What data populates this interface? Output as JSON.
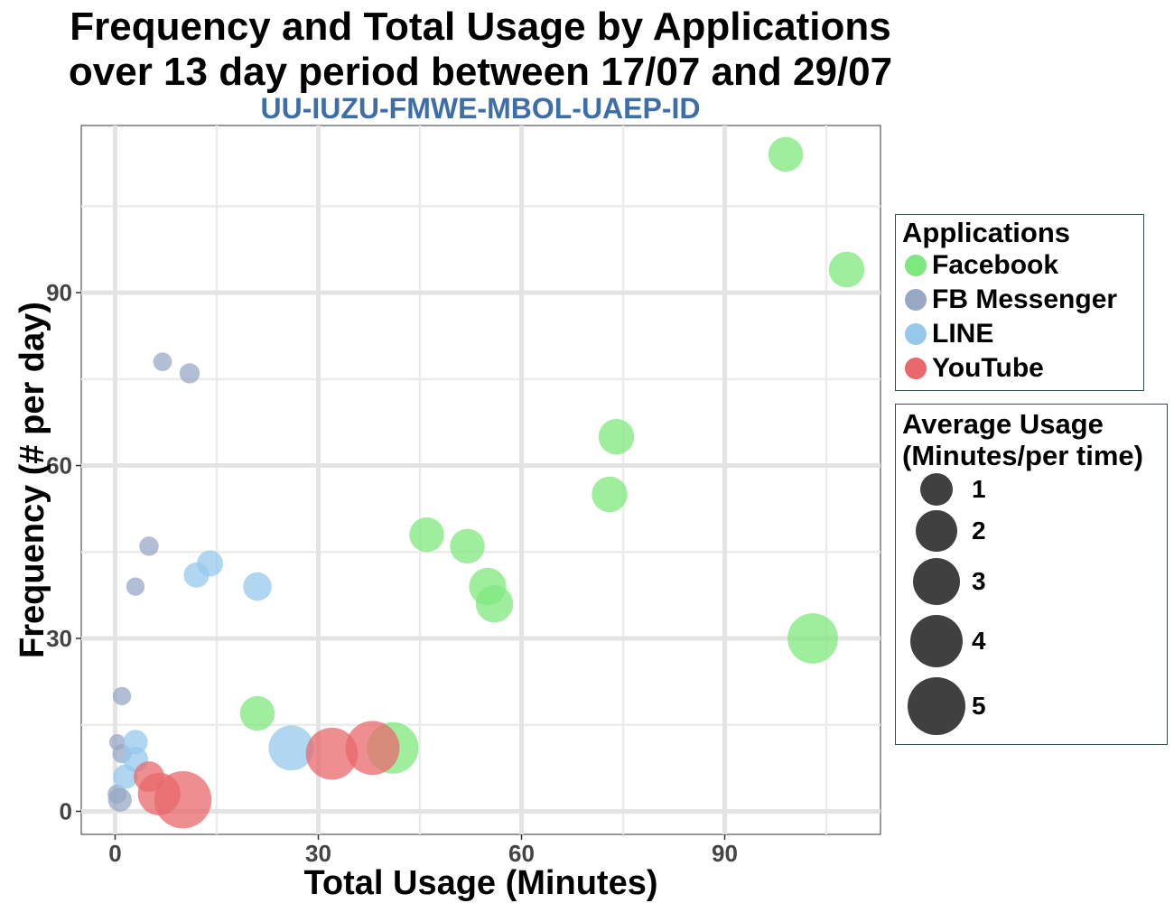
{
  "chart_data": {
    "type": "scatter",
    "title": "Frequency and Total Usage by Applications",
    "title_line2": "over 13 day period between 17/07 and 29/07",
    "subtitle": "UU-IUZU-FMWE-MBOL-UAEP-ID",
    "xlabel": "Total Usage (Minutes)",
    "ylabel": "Frequency (# per day)",
    "xlim": [
      -5,
      113
    ],
    "ylim": [
      -4,
      119
    ],
    "x_ticks": [
      0,
      30,
      60,
      90
    ],
    "y_ticks": [
      0,
      30,
      60,
      90
    ],
    "grid": true,
    "legend_position": "right",
    "color_legend": {
      "title": "Applications",
      "entries": [
        {
          "name": "Facebook",
          "color": "#7de87d"
        },
        {
          "name": "FB Messenger",
          "color": "#97a8c4"
        },
        {
          "name": "LINE",
          "color": "#97c8ec"
        },
        {
          "name": "YouTube",
          "color": "#e8686c"
        }
      ]
    },
    "size_legend": {
      "title_line1": "Average Usage",
      "title_line2": "(Minutes/per time)",
      "values": [
        1,
        2,
        3,
        4,
        5
      ]
    },
    "series": [
      {
        "name": "Facebook",
        "color": "#7de87d",
        "points": [
          {
            "x": 99,
            "y": 114,
            "size": 1.2
          },
          {
            "x": 108,
            "y": 94,
            "size": 1.3
          },
          {
            "x": 74,
            "y": 65,
            "size": 1.3
          },
          {
            "x": 73,
            "y": 55,
            "size": 1.3
          },
          {
            "x": 46,
            "y": 48,
            "size": 1.2
          },
          {
            "x": 52,
            "y": 46,
            "size": 1.2
          },
          {
            "x": 55,
            "y": 39,
            "size": 1.5
          },
          {
            "x": 56,
            "y": 36,
            "size": 1.5
          },
          {
            "x": 103,
            "y": 30,
            "size": 3.5
          },
          {
            "x": 21,
            "y": 17,
            "size": 1.2
          },
          {
            "x": 41,
            "y": 11,
            "size": 3.7
          }
        ]
      },
      {
        "name": "FB Messenger",
        "color": "#97a8c4",
        "points": [
          {
            "x": 7,
            "y": 78,
            "size": 0.09
          },
          {
            "x": 11,
            "y": 76,
            "size": 0.14
          },
          {
            "x": 5,
            "y": 46,
            "size": 0.11
          },
          {
            "x": 3,
            "y": 39,
            "size": 0.08
          },
          {
            "x": 1,
            "y": 20,
            "size": 0.08
          },
          {
            "x": 0.3,
            "y": 12,
            "size": 0.03
          },
          {
            "x": 1,
            "y": 10,
            "size": 0.1
          },
          {
            "x": 0.3,
            "y": 3,
            "size": 0.1
          },
          {
            "x": 0.7,
            "y": 2,
            "size": 0.3
          }
        ]
      },
      {
        "name": "LINE",
        "color": "#97c8ec",
        "points": [
          {
            "x": 14,
            "y": 43,
            "size": 0.45
          },
          {
            "x": 12,
            "y": 41,
            "size": 0.4
          },
          {
            "x": 21,
            "y": 39,
            "size": 0.62
          },
          {
            "x": 3,
            "y": 12,
            "size": 0.35
          },
          {
            "x": 3,
            "y": 9,
            "size": 0.4
          },
          {
            "x": 1.5,
            "y": 6,
            "size": 0.35
          },
          {
            "x": 26,
            "y": 11,
            "size": 2.6
          }
        ]
      },
      {
        "name": "YouTube",
        "color": "#e8686c",
        "points": [
          {
            "x": 5,
            "y": 6,
            "size": 0.8
          },
          {
            "x": 6.5,
            "y": 3,
            "size": 2.2
          },
          {
            "x": 10,
            "y": 2,
            "size": 4.9
          },
          {
            "x": 32,
            "y": 10,
            "size": 3.8
          },
          {
            "x": 38,
            "y": 11,
            "size": 4.2
          }
        ]
      }
    ]
  }
}
